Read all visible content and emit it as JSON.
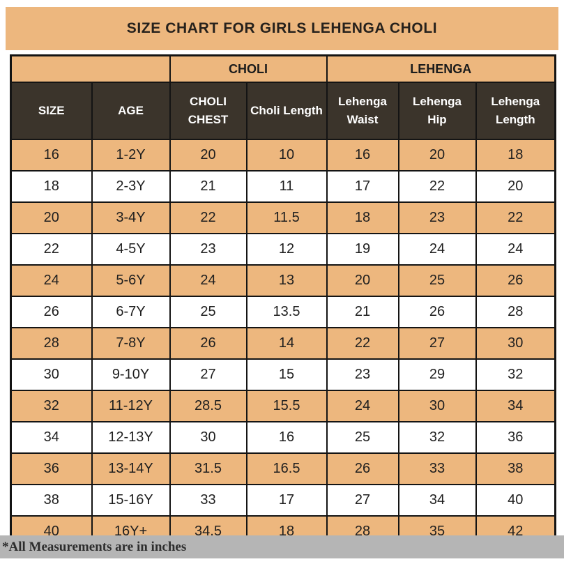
{
  "title": "SIZE CHART FOR GIRLS LEHENGA CHOLI",
  "footnote": "*All Measurements are in inches",
  "colors": {
    "tan": "#edb77e",
    "header_brown": "#3b342b",
    "header_text": "#ffffff",
    "border_black": "#141414",
    "footnote_gray": "#b5b5b5",
    "text_dark": "#1f1f1f"
  },
  "chart_data": {
    "type": "table",
    "title": "SIZE CHART FOR GIRLS LEHENGA CHOLI",
    "group_headers": [
      {
        "label": "",
        "colspan": 2
      },
      {
        "label": "CHOLI",
        "colspan": 2
      },
      {
        "label": "LEHENGA",
        "colspan": 3
      }
    ],
    "columns": [
      "SIZE",
      "AGE",
      "CHOLI CHEST",
      "Choli Length",
      "Lehenga Waist",
      "Lehenga Hip",
      "Lehenga Length"
    ],
    "rows": [
      [
        "16",
        "1-2Y",
        "20",
        "10",
        "16",
        "20",
        "18"
      ],
      [
        "18",
        "2-3Y",
        "21",
        "11",
        "17",
        "22",
        "20"
      ],
      [
        "20",
        "3-4Y",
        "22",
        "11.5",
        "18",
        "23",
        "22"
      ],
      [
        "22",
        "4-5Y",
        "23",
        "12",
        "19",
        "24",
        "24"
      ],
      [
        "24",
        "5-6Y",
        "24",
        "13",
        "20",
        "25",
        "26"
      ],
      [
        "26",
        "6-7Y",
        "25",
        "13.5",
        "21",
        "26",
        "28"
      ],
      [
        "28",
        "7-8Y",
        "26",
        "14",
        "22",
        "27",
        "30"
      ],
      [
        "30",
        "9-10Y",
        "27",
        "15",
        "23",
        "29",
        "32"
      ],
      [
        "32",
        "11-12Y",
        "28.5",
        "15.5",
        "24",
        "30",
        "34"
      ],
      [
        "34",
        "12-13Y",
        "30",
        "16",
        "25",
        "32",
        "36"
      ],
      [
        "36",
        "13-14Y",
        "31.5",
        "16.5",
        "26",
        "33",
        "38"
      ],
      [
        "38",
        "15-16Y",
        "33",
        "17",
        "27",
        "34",
        "40"
      ],
      [
        "40",
        "16Y+",
        "34.5",
        "18",
        "28",
        "35",
        "42"
      ]
    ],
    "footnote": "*All Measurements are in inches",
    "row_stripe_pattern": "tan/white alternating, starting tan",
    "units": "inches"
  }
}
